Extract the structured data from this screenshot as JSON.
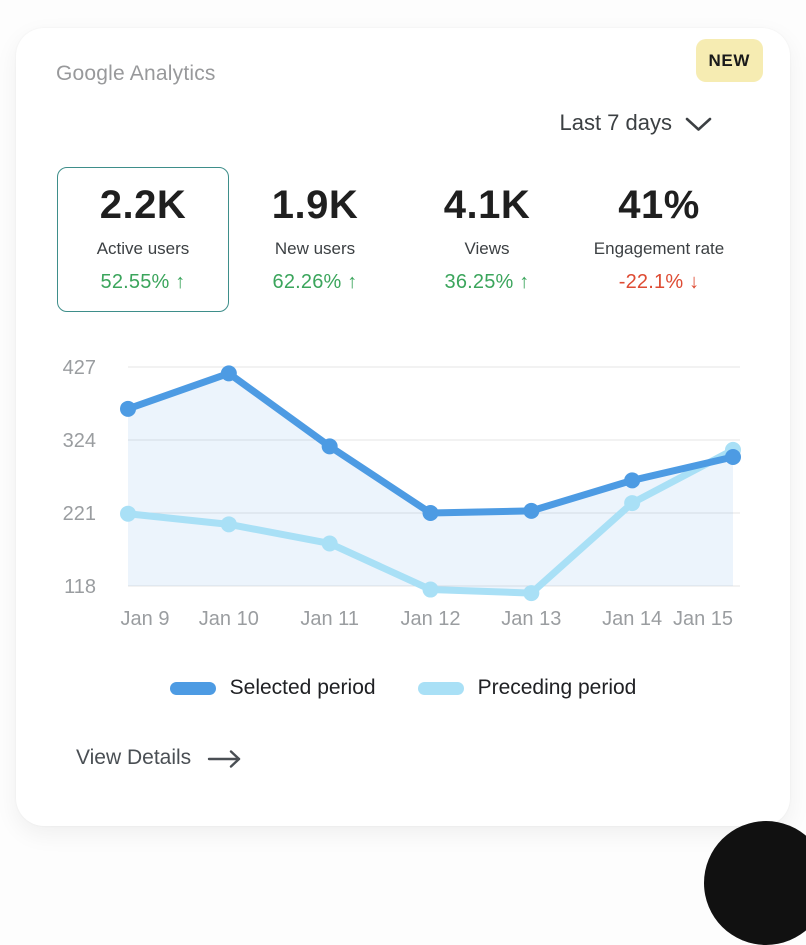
{
  "header": {
    "title": "Google Analytics",
    "badge": "NEW"
  },
  "period_selector": {
    "value": "Last 7 days"
  },
  "stats": [
    {
      "value": "2.2K",
      "label": "Active users",
      "change": "52.55%",
      "direction": "up",
      "selected": true
    },
    {
      "value": "1.9K",
      "label": "New users",
      "change": "62.26%",
      "direction": "up",
      "selected": false
    },
    {
      "value": "4.1K",
      "label": "Views",
      "change": "36.25%",
      "direction": "up",
      "selected": false
    },
    {
      "value": "41%",
      "label": "Engagement rate",
      "change": "-22.1%",
      "direction": "down",
      "selected": false
    }
  ],
  "footer": {
    "view_details": "View Details"
  },
  "icons": {
    "up_arrow": "↑",
    "down_arrow": "↓"
  },
  "colors": {
    "badge_bg": "#F6ECB2",
    "badge_text": "#1A1A1A",
    "positive": "#3BA55C",
    "negative": "#DE4B33",
    "selected_stat_border": "#3E8E8A",
    "grid_line": "#E4E4E4",
    "axis_text": "#9A9DA0",
    "area_fill": "#4D9BE3"
  },
  "chart_data": {
    "type": "line",
    "title": "Google Analytics traffic, selected vs preceding period",
    "x": [
      "Jan 9",
      "Jan 10",
      "Jan 11",
      "Jan 12",
      "Jan 13",
      "Jan 14",
      "Jan 15"
    ],
    "series": [
      {
        "name": "Selected period",
        "color": "#4D9BE3",
        "values": [
          368,
          418,
          315,
          221,
          224,
          267,
          300
        ]
      },
      {
        "name": "Preceding period",
        "color": "#A9E0F6",
        "values": [
          220,
          205,
          178,
          113,
          108,
          235,
          310
        ]
      }
    ],
    "yticks": [
      118,
      221,
      324,
      427
    ],
    "ylim": [
      95,
      445
    ],
    "xlabel": "",
    "ylabel": "",
    "grid": true,
    "area_fill": true,
    "legend_position": "bottom"
  }
}
